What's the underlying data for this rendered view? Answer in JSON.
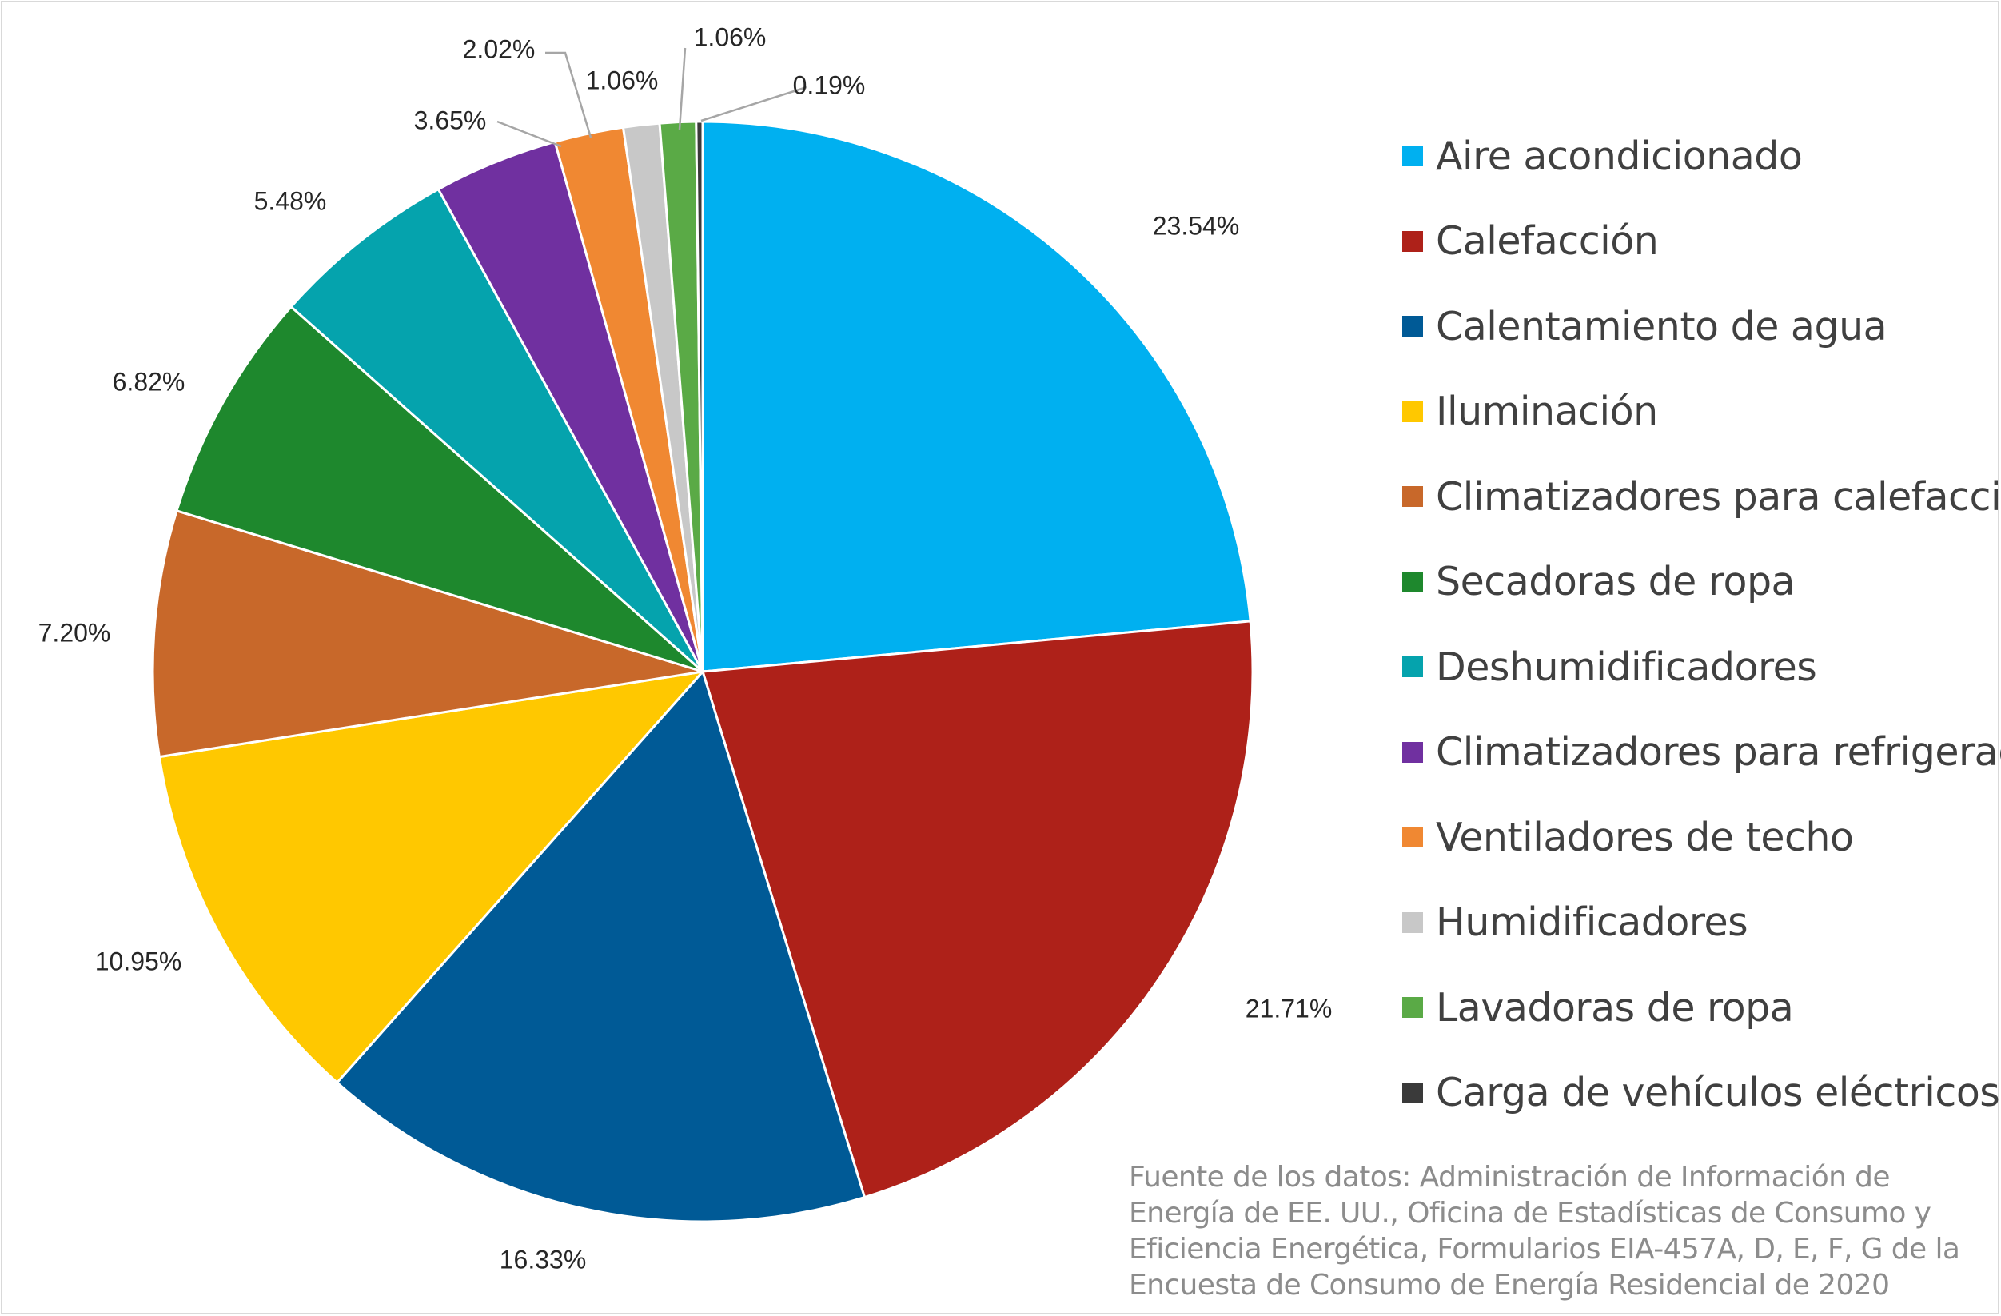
{
  "chart_data": {
    "type": "pie",
    "categories": [
      "Aire acondicionado",
      "Calefacción",
      "Calentamiento de agua",
      "Iluminación",
      "Climatizadores para calefacción",
      "Secadoras de ropa",
      "Deshumidificadores",
      "Climatizadores para refrigeración",
      "Ventiladores de techo",
      "Humidificadores",
      "Lavadoras de ropa",
      "Carga de vehículos eléctricos"
    ],
    "values": [
      23.54,
      21.71,
      16.33,
      10.95,
      7.2,
      6.82,
      5.48,
      3.65,
      2.02,
      1.06,
      1.06,
      0.19
    ],
    "data_labels": [
      "23.54%",
      "21.71%",
      "16.33%",
      "10.95%",
      "7.20%",
      "6.82%",
      "5.48%",
      "3.65%",
      "2.02%",
      "1.06%",
      "1.06%",
      "0.19%"
    ],
    "colors": [
      "#00b0f0",
      "#ae2119",
      "#005a96",
      "#ffc800",
      "#c8682a",
      "#1e882d",
      "#05a3ad",
      "#7030a0",
      "#f08832",
      "#c8c8c8",
      "#5aaa46",
      "#3a3a3a"
    ],
    "legend_position": "right",
    "title": "",
    "xlabel": "",
    "ylabel": ""
  },
  "source_note": [
    "Fuente de los datos: Administración de Información de",
    "Energía de EE. UU., Oficina de Estadísticas de Consumo y",
    "Eficiencia Energética, Formularios EIA-457A, D, E, F, G de la",
    "Encuesta de Consumo de Energía Residencial de 2020"
  ]
}
